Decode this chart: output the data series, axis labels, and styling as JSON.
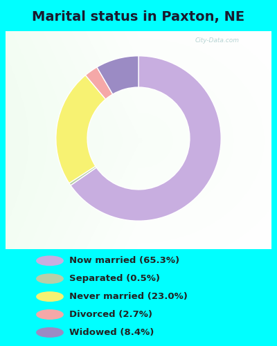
{
  "title": "Marital status in Paxton, NE",
  "title_fontsize": 14,
  "title_fontweight": "bold",
  "title_color": "#1a1a2e",
  "cyan_bg": "#00ffff",
  "slices": [
    {
      "label": "Now married (65.3%)",
      "value": 65.3,
      "color": "#c8aee0"
    },
    {
      "label": "Separated (0.5%)",
      "value": 0.5,
      "color": "#b8cfa8"
    },
    {
      "label": "Never married (23.0%)",
      "value": 23.0,
      "color": "#f7f272"
    },
    {
      "label": "Divorced (2.7%)",
      "value": 2.7,
      "color": "#f5a8a8"
    },
    {
      "label": "Widowed (8.4%)",
      "value": 8.4,
      "color": "#9b8bc4"
    }
  ],
  "donut_width": 0.38,
  "startangle": 90,
  "watermark": "City-Data.com",
  "legend_fontsize": 9.5,
  "legend_text_color": "#222222"
}
